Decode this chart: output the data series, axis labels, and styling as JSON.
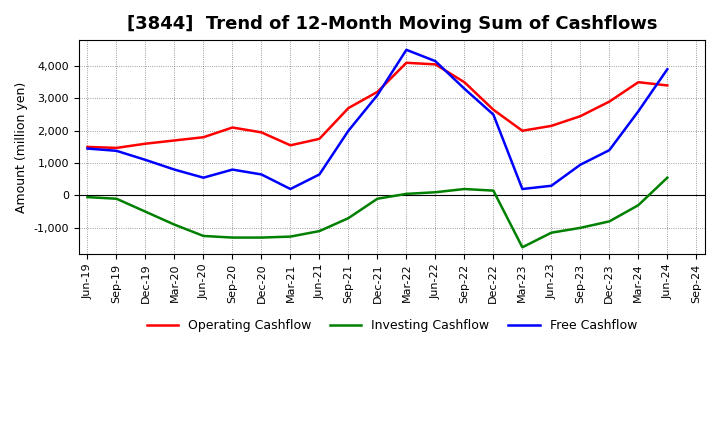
{
  "title": "[3844]  Trend of 12-Month Moving Sum of Cashflows",
  "ylabel": "Amount (million yen)",
  "x_labels": [
    "Jun-19",
    "Sep-19",
    "Dec-19",
    "Mar-20",
    "Jun-20",
    "Sep-20",
    "Dec-20",
    "Mar-21",
    "Jun-21",
    "Sep-21",
    "Dec-21",
    "Mar-22",
    "Jun-22",
    "Sep-22",
    "Dec-22",
    "Mar-23",
    "Jun-23",
    "Sep-23",
    "Dec-23",
    "Mar-24",
    "Jun-24",
    "Sep-24"
  ],
  "operating_cashflow": [
    1500,
    1470,
    1600,
    1700,
    1800,
    2100,
    1950,
    1550,
    1750,
    2700,
    3200,
    4100,
    4050,
    3500,
    2650,
    2000,
    2150,
    2450,
    2900,
    3500,
    3400,
    null
  ],
  "investing_cashflow": [
    -50,
    -100,
    -500,
    -900,
    -1250,
    -1300,
    -1300,
    -1270,
    -1100,
    -700,
    -100,
    50,
    100,
    200,
    150,
    -1600,
    -1150,
    -1000,
    -800,
    -300,
    550,
    null
  ],
  "free_cashflow": [
    1450,
    1380,
    1100,
    800,
    550,
    800,
    650,
    200,
    650,
    2000,
    3100,
    4500,
    4150,
    3300,
    2500,
    200,
    300,
    950,
    1400,
    2600,
    3900,
    null
  ],
  "operating_color": "#ff0000",
  "investing_color": "#008000",
  "free_color": "#0000ff",
  "bg_color": "#ffffff",
  "plot_bg_color": "#ffffff",
  "grid_color": "#808080",
  "ylim": [
    -1800,
    4800
  ],
  "yticks": [
    -1000,
    0,
    1000,
    2000,
    3000,
    4000
  ],
  "line_width": 1.8,
  "title_fontsize": 13,
  "axis_fontsize": 9,
  "tick_fontsize": 8,
  "legend_fontsize": 9
}
